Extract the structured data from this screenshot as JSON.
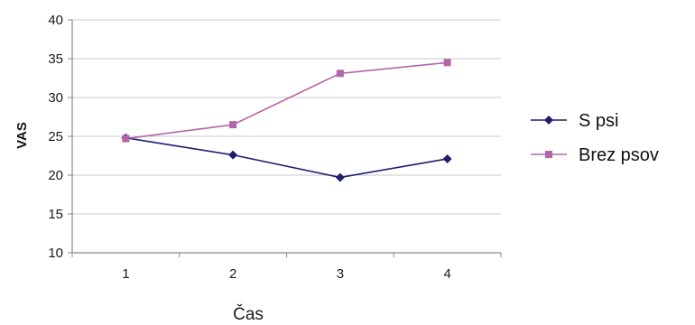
{
  "chart_data": {
    "type": "line",
    "title": "",
    "xlabel": "Čas",
    "ylabel": "VAS",
    "x": [
      "1",
      "2",
      "3",
      "4"
    ],
    "ylim": [
      10,
      40
    ],
    "yticks": [
      10,
      15,
      20,
      25,
      30,
      35,
      40
    ],
    "grid": "horizontal",
    "legend_position": "right",
    "series": [
      {
        "name": "S psi",
        "values": [
          24.8,
          22.6,
          19.7,
          22.1
        ],
        "color": "#1e1e6e",
        "marker": "diamond"
      },
      {
        "name": "Brez psov",
        "values": [
          24.7,
          26.5,
          33.1,
          34.5
        ],
        "color": "#b266a8",
        "marker": "square"
      }
    ]
  }
}
